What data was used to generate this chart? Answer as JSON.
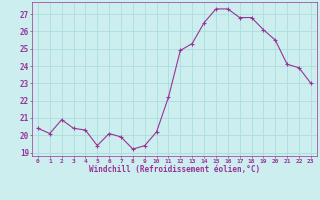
{
  "x": [
    0,
    1,
    2,
    3,
    4,
    5,
    6,
    7,
    8,
    9,
    10,
    11,
    12,
    13,
    14,
    15,
    16,
    17,
    18,
    19,
    20,
    21,
    22,
    23
  ],
  "y": [
    20.4,
    20.1,
    20.9,
    20.4,
    20.3,
    19.4,
    20.1,
    19.9,
    19.2,
    19.4,
    20.2,
    22.2,
    24.9,
    25.3,
    26.5,
    27.3,
    27.3,
    26.8,
    26.8,
    26.1,
    25.5,
    24.1,
    23.9,
    23.0
  ],
  "line_color": "#993399",
  "marker": "+",
  "bg_color": "#cceeee",
  "grid_color": "#aadddd",
  "xlabel": "Windchill (Refroidissement éolien,°C)",
  "xlabel_color": "#993399",
  "tick_color": "#993399",
  "ylim": [
    18.8,
    27.7
  ],
  "xlim": [
    -0.5,
    23.5
  ],
  "yticks": [
    19,
    20,
    21,
    22,
    23,
    24,
    25,
    26,
    27
  ],
  "xticks": [
    0,
    1,
    2,
    3,
    4,
    5,
    6,
    7,
    8,
    9,
    10,
    11,
    12,
    13,
    14,
    15,
    16,
    17,
    18,
    19,
    20,
    21,
    22,
    23
  ]
}
